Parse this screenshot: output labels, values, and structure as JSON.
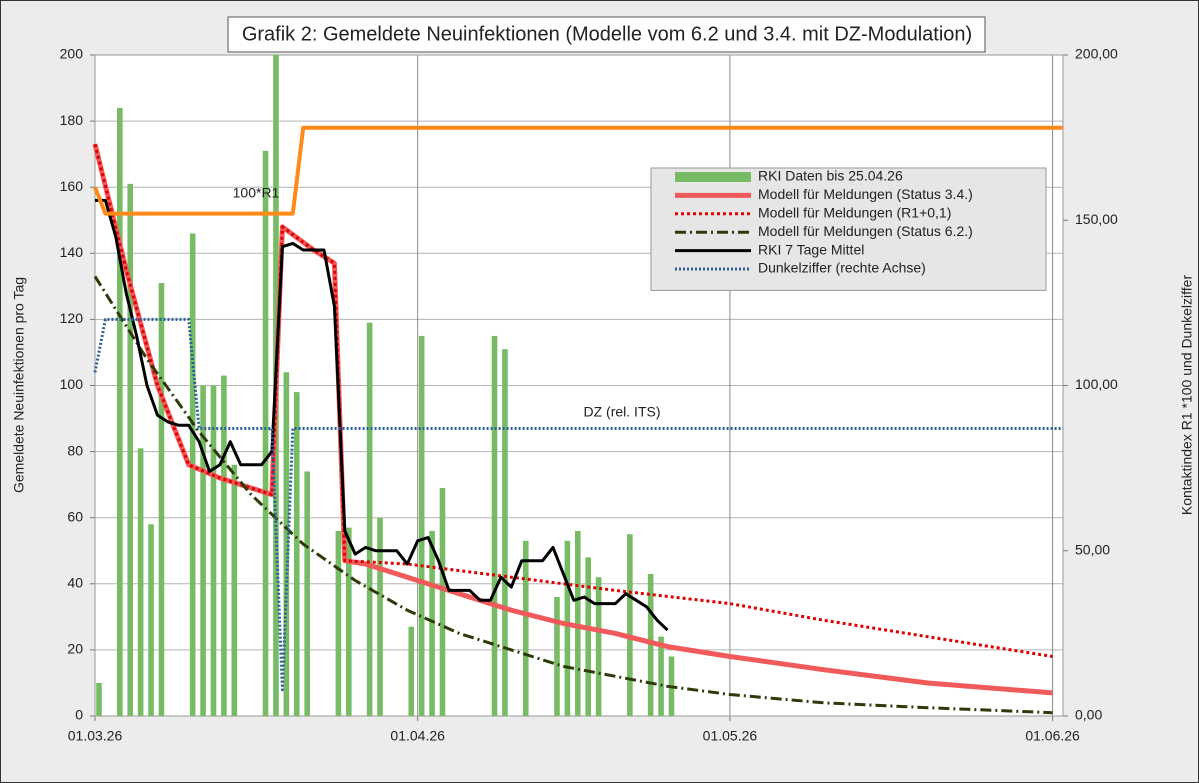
{
  "chart_data": {
    "type": "combo",
    "title": "Grafik 2: Gemeldete Neuinfektionen (Modelle vom 6.2 und 3.4. mit DZ-Modulation)",
    "y_label": "Gemeldete Neuinfektionen pro Tag",
    "y2_label": "Kontaktindex R1 *100 und Dunkelziffer",
    "annotations": [
      {
        "text": "100*R1"
      },
      {
        "text": "DZ (rel. ITS)"
      }
    ],
    "xlim": [
      "2026-03-01",
      "2026-06-02"
    ],
    "xticks": [
      {
        "value": "2026-03-01",
        "label": "01.03.26"
      },
      {
        "value": "2026-04-01",
        "label": "01.04.26"
      },
      {
        "value": "2026-05-01",
        "label": "01.05.26"
      },
      {
        "value": "2026-06-01",
        "label": "01.06.26"
      }
    ],
    "ylim": [
      0,
      200
    ],
    "yticks": [
      0,
      20,
      40,
      60,
      80,
      100,
      120,
      140,
      160,
      180,
      200
    ],
    "y2lim": [
      0,
      200
    ],
    "y2ticks": [
      {
        "value": 0,
        "label": "0,00"
      },
      {
        "value": 50,
        "label": "50,00"
      },
      {
        "value": 100,
        "label": "100,00"
      },
      {
        "value": 150,
        "label": "150,00"
      },
      {
        "value": 200,
        "label": "200,00"
      }
    ],
    "grid": true,
    "legend": "upper right",
    "x": [
      "2026-03-01",
      "2026-03-02",
      "2026-03-03",
      "2026-03-04",
      "2026-03-05",
      "2026-03-06",
      "2026-03-07",
      "2026-03-08",
      "2026-03-09",
      "2026-03-10",
      "2026-03-11",
      "2026-03-12",
      "2026-03-13",
      "2026-03-14",
      "2026-03-15",
      "2026-03-16",
      "2026-03-17",
      "2026-03-18",
      "2026-03-19",
      "2026-03-20",
      "2026-03-21",
      "2026-03-22",
      "2026-03-23",
      "2026-03-24",
      "2026-03-25",
      "2026-03-26",
      "2026-03-27",
      "2026-03-28",
      "2026-03-29",
      "2026-03-30",
      "2026-03-31",
      "2026-04-01",
      "2026-04-02",
      "2026-04-03",
      "2026-04-04",
      "2026-04-05",
      "2026-04-06",
      "2026-04-07",
      "2026-04-08",
      "2026-04-09",
      "2026-04-10",
      "2026-04-11",
      "2026-04-12",
      "2026-04-13",
      "2026-04-14",
      "2026-04-15",
      "2026-04-16",
      "2026-04-17",
      "2026-04-18",
      "2026-04-19",
      "2026-04-20",
      "2026-04-21",
      "2026-04-22",
      "2026-04-23",
      "2026-04-24",
      "2026-04-25"
    ],
    "series": [
      {
        "name": "RKI Daten bis 25.04.26",
        "type": "bar",
        "color": "#77bc65",
        "values": [
          10,
          0,
          184,
          161,
          81,
          58,
          131,
          0,
          0,
          146,
          100,
          100,
          103,
          76,
          0,
          0,
          171,
          200,
          104,
          98,
          74,
          0,
          0,
          56,
          57,
          0,
          119,
          60,
          0,
          0,
          27,
          115,
          56,
          69,
          0,
          0,
          0,
          0,
          115,
          111,
          0,
          53,
          0,
          0,
          36,
          53,
          56,
          48,
          42,
          0,
          0,
          55,
          0,
          43,
          24,
          18
        ]
      },
      {
        "name": "Modell für Meldungen (Status 3.4.)",
        "type": "line",
        "style": "solid",
        "color": "#f05a5a",
        "x": [
          "2026-03-01",
          "2026-03-04",
          "2026-03-07",
          "2026-03-10",
          "2026-03-13",
          "2026-03-18",
          "2026-03-19",
          "2026-03-22",
          "2026-03-24",
          "2026-03-25",
          "2026-03-27",
          "2026-03-31",
          "2026-04-05",
          "2026-04-10",
          "2026-04-15",
          "2026-04-20",
          "2026-04-25",
          "2026-05-01",
          "2026-05-10",
          "2026-05-20",
          "2026-06-01"
        ],
        "values": [
          173,
          135,
          100,
          76,
          72,
          67,
          148,
          141,
          137,
          47,
          46,
          42,
          37,
          32,
          28,
          25,
          21,
          18,
          14,
          10,
          7
        ]
      },
      {
        "name": "Modell für Meldungen (R1+0,1)",
        "type": "line",
        "style": "dotted",
        "color": "#e00000",
        "x": [
          "2026-03-01",
          "2026-03-04",
          "2026-03-07",
          "2026-03-10",
          "2026-03-13",
          "2026-03-18",
          "2026-03-19",
          "2026-03-22",
          "2026-03-24",
          "2026-03-25",
          "2026-03-31",
          "2026-04-10",
          "2026-04-20",
          "2026-05-01",
          "2026-05-10",
          "2026-05-20",
          "2026-06-01"
        ],
        "values": [
          173,
          135,
          100,
          76,
          72,
          67,
          148,
          141,
          137,
          47,
          46,
          42,
          38,
          34,
          29,
          24,
          18
        ]
      },
      {
        "name": "Modell für Meldungen (Status 6.2.)",
        "type": "line",
        "style": "dashdot",
        "color": "#2f3a0a",
        "x": [
          "2026-03-01",
          "2026-03-06",
          "2026-03-11",
          "2026-03-16",
          "2026-03-21",
          "2026-03-26",
          "2026-03-31",
          "2026-04-05",
          "2026-04-10",
          "2026-04-15",
          "2026-04-20",
          "2026-04-25",
          "2026-05-01",
          "2026-05-10",
          "2026-05-20",
          "2026-06-01"
        ],
        "values": [
          133,
          108,
          86,
          67,
          52,
          41,
          32,
          25,
          20,
          15,
          12,
          9,
          6.5,
          4,
          2.5,
          1
        ]
      },
      {
        "name": "RKI 7 Tage Mittel",
        "type": "line",
        "style": "solid-thin",
        "color": "#000000",
        "values": [
          156,
          156,
          145,
          128,
          115,
          100,
          91,
          89,
          88,
          88,
          83,
          74,
          76,
          83,
          76,
          76,
          76,
          80,
          142,
          143,
          141,
          141,
          141,
          124,
          56,
          49,
          51,
          50,
          50,
          50,
          46,
          53,
          54,
          47,
          38,
          38,
          38,
          35,
          35,
          42,
          39,
          47,
          47,
          47,
          51,
          43,
          35,
          36,
          34,
          34,
          34,
          37,
          35,
          33,
          29,
          26
        ]
      },
      {
        "name": "Dunkelziffer (rechte Achse)",
        "type": "line",
        "style": "dotted-blue",
        "color": "#2a6099",
        "axis": "y2",
        "x": [
          "2026-03-01",
          "2026-03-02",
          "2026-03-10",
          "2026-03-11",
          "2026-03-18",
          "2026-03-19",
          "2026-03-20",
          "2026-06-02"
        ],
        "values": [
          104,
          120,
          120,
          87,
          87,
          8,
          87,
          87
        ]
      },
      {
        "type": "line",
        "style": "thick",
        "color": "#ff8a1a",
        "axis": "y2",
        "x": [
          "2026-03-01",
          "2026-03-02",
          "2026-03-20",
          "2026-03-21",
          "2026-06-02"
        ],
        "values": [
          160,
          152,
          152,
          178,
          178
        ]
      }
    ]
  }
}
